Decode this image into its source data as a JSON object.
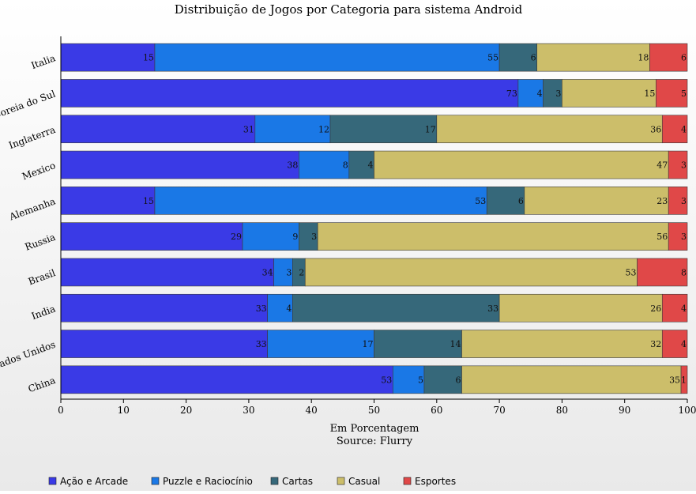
{
  "chart_data": {
    "type": "bar",
    "orientation": "horizontal",
    "stacked": true,
    "title": "Distribuição de Jogos por Categoria para sistema Android",
    "xlabel": "Em Porcentagem",
    "source": "Source: Flurry",
    "ylabel": "",
    "xlim": [
      0,
      100
    ],
    "xticks": [
      0,
      10,
      20,
      30,
      40,
      50,
      60,
      70,
      80,
      90,
      100
    ],
    "grid": false,
    "legend_position": "bottom",
    "categories": [
      "Italia",
      "Coreia do Sul",
      "Inglaterra",
      "Mexico",
      "Alemanha",
      "Russia",
      "Brasil",
      "India",
      "Estados Unidos",
      "China"
    ],
    "series": [
      {
        "name": "Ação e Arcade",
        "color": "#3a3ae6",
        "values": [
          15,
          73,
          31,
          38,
          15,
          29,
          34,
          33,
          33,
          53
        ]
      },
      {
        "name": "Puzzle e Raciocínio",
        "color": "#1a78e6",
        "values": [
          55,
          4,
          12,
          8,
          53,
          9,
          3,
          4,
          17,
          5
        ]
      },
      {
        "name": "Cartas",
        "color": "#36687a",
        "values": [
          6,
          3,
          17,
          4,
          6,
          3,
          2,
          33,
          14,
          6
        ]
      },
      {
        "name": "Casual",
        "color": "#ccbe6a",
        "values": [
          18,
          15,
          36,
          47,
          23,
          56,
          53,
          26,
          32,
          35
        ]
      },
      {
        "name": "Esportes",
        "color": "#e04848",
        "values": [
          6,
          5,
          4,
          3,
          3,
          3,
          8,
          4,
          4,
          1
        ]
      }
    ]
  }
}
